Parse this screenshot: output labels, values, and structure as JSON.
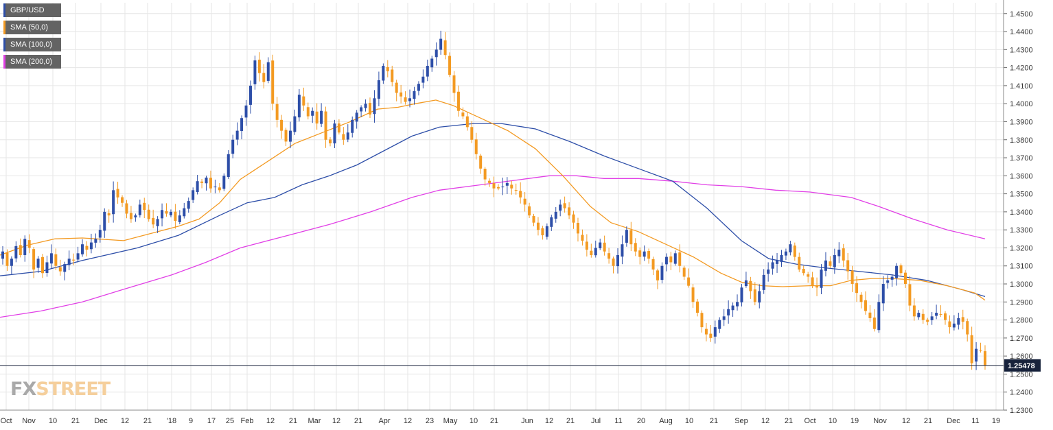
{
  "legend": [
    {
      "label": "GBP/USD",
      "color": "#2d4ea8"
    },
    {
      "label": "SMA (50,0)",
      "color": "#f39a22"
    },
    {
      "label": "SMA (100,0)",
      "color": "#2d4ea8"
    },
    {
      "label": "SMA (200,0)",
      "color": "#e13fe6"
    }
  ],
  "logo": {
    "fx": "FX",
    "street": "STREET"
  },
  "chart_data": {
    "type": "candlestick",
    "series_name": "GBP/USD",
    "ylim": [
      1.23,
      1.456
    ],
    "y_ticks": [
      "1.4500",
      "1.4400",
      "1.4300",
      "1.4200",
      "1.4100",
      "1.4000",
      "1.3900",
      "1.3800",
      "1.3700",
      "1.3600",
      "1.3500",
      "1.3400",
      "1.3300",
      "1.3200",
      "1.3100",
      "1.3000",
      "1.2900",
      "1.2800",
      "1.2700",
      "1.2600",
      "1.2500",
      "1.2400",
      "1.2300"
    ],
    "x_ticks": [
      "Oct",
      "Nov",
      "10",
      "21",
      "Dec",
      "12",
      "21",
      "'18",
      "9",
      "17",
      "25",
      "Feb",
      "12",
      "21",
      "Mar",
      "12",
      "21",
      "Apr",
      "12",
      "23",
      "May",
      "10",
      "21",
      "Jun",
      "12",
      "21",
      "Jul",
      "11",
      "20",
      "Aug",
      "10",
      "21",
      "Sep",
      "12",
      "21",
      "Oct",
      "10",
      "19",
      "Nov",
      "12",
      "21",
      "Dec",
      "11",
      "19"
    ],
    "current_price": {
      "value": 1.2548,
      "label": "1.25478"
    },
    "colors": {
      "up": "#2d4ea8",
      "down": "#f39a22",
      "sma50": "#f39a22",
      "sma100": "#2d4ea8",
      "sma200": "#e13fe6",
      "grid": "#e6e6e6",
      "price_line": "#17223b"
    },
    "grid": true,
    "legend_position": "top-left",
    "candles_closes_approx": [
      1.318,
      1.31,
      1.314,
      1.321,
      1.316,
      1.325,
      1.32,
      1.308,
      1.314,
      1.306,
      1.312,
      1.317,
      1.31,
      1.307,
      1.311,
      1.314,
      1.313,
      1.317,
      1.322,
      1.319,
      1.323,
      1.325,
      1.33,
      1.34,
      1.338,
      1.352,
      1.348,
      1.345,
      1.339,
      1.336,
      1.338,
      1.344,
      1.341,
      1.336,
      1.333,
      1.336,
      1.341,
      1.339,
      1.34,
      1.335,
      1.338,
      1.342,
      1.346,
      1.352,
      1.357,
      1.356,
      1.359,
      1.353,
      1.354,
      1.352,
      1.36,
      1.372,
      1.38,
      1.385,
      1.392,
      1.399,
      1.41,
      1.424,
      1.417,
      1.412,
      1.423,
      1.4,
      1.391,
      1.385,
      1.379,
      1.385,
      1.393,
      1.405,
      1.399,
      1.393,
      1.396,
      1.389,
      1.396,
      1.38,
      1.378,
      1.389,
      1.384,
      1.38,
      1.384,
      1.391,
      1.395,
      1.398,
      1.4,
      1.394,
      1.403,
      1.413,
      1.421,
      1.418,
      1.412,
      1.406,
      1.404,
      1.401,
      1.403,
      1.407,
      1.411,
      1.415,
      1.421,
      1.425,
      1.43,
      1.436,
      1.427,
      1.416,
      1.406,
      1.396,
      1.393,
      1.387,
      1.38,
      1.372,
      1.364,
      1.358,
      1.356,
      1.353,
      1.353,
      1.354,
      1.356,
      1.353,
      1.352,
      1.348,
      1.344,
      1.338,
      1.334,
      1.33,
      1.327,
      1.332,
      1.337,
      1.34,
      1.344,
      1.342,
      1.338,
      1.334,
      1.328,
      1.324,
      1.319,
      1.316,
      1.32,
      1.323,
      1.318,
      1.314,
      1.31,
      1.316,
      1.322,
      1.33,
      1.322,
      1.318,
      1.315,
      1.318,
      1.314,
      1.308,
      1.302,
      1.31,
      1.315,
      1.312,
      1.317,
      1.31,
      1.304,
      1.299,
      1.29,
      1.284,
      1.276,
      1.272,
      1.27,
      1.276,
      1.28,
      1.282,
      1.286,
      1.288,
      1.29,
      1.298,
      1.302,
      1.296,
      1.29,
      1.296,
      1.305,
      1.308,
      1.312,
      1.313,
      1.316,
      1.318,
      1.322,
      1.315,
      1.308,
      1.306,
      1.304,
      1.299,
      1.298,
      1.308,
      1.313,
      1.31,
      1.316,
      1.319,
      1.313,
      1.307,
      1.3,
      1.295,
      1.29,
      1.285,
      1.281,
      1.275,
      1.29,
      1.3,
      1.302,
      1.304,
      1.31,
      1.306,
      1.3,
      1.288,
      1.282,
      1.284,
      1.28,
      1.279,
      1.282,
      1.284,
      1.283,
      1.28,
      1.276,
      1.278,
      1.281,
      1.279,
      1.272,
      1.256,
      1.264,
      1.263,
      1.2548
    ]
  }
}
